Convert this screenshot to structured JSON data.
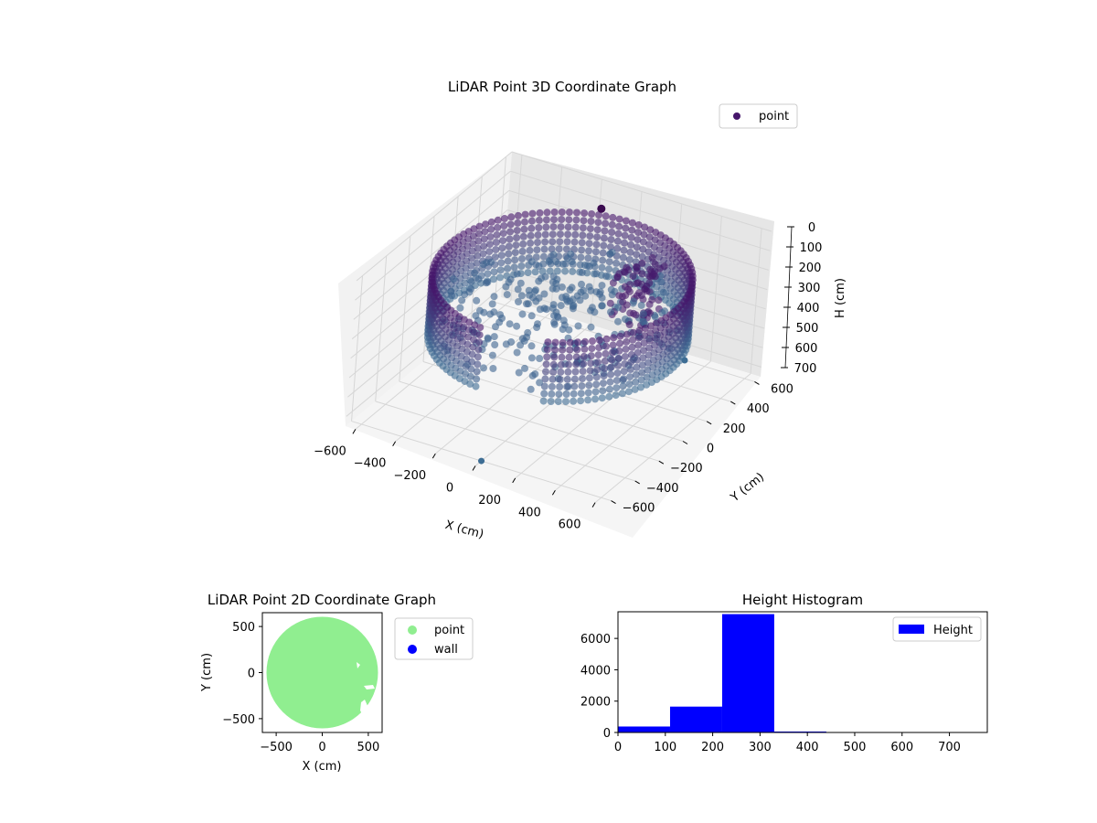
{
  "charts": {
    "main3d": {
      "title": "LiDAR Point 3D Coordinate Graph",
      "legend_label": "point",
      "xlabel": "X (cm)",
      "ylabel": "Y (cm)",
      "zlabel": "H (cm)",
      "x_ticks": [
        "−600",
        "−400",
        "−200",
        "0",
        "200",
        "400",
        "600"
      ],
      "y_ticks": [
        "−600",
        "−400",
        "−200",
        "0",
        "200",
        "400",
        "600"
      ],
      "z_ticks": [
        "0",
        "100",
        "200",
        "300",
        "400",
        "500",
        "600",
        "700"
      ]
    },
    "scatter2d": {
      "title": "LiDAR Point 2D Coordinate Graph",
      "legend_point": "point",
      "legend_wall": "wall",
      "xlabel": "X (cm)",
      "ylabel": "Y (cm)",
      "x_ticks": [
        "−500",
        "0",
        "500"
      ],
      "y_ticks": [
        "500",
        "0",
        "−500"
      ]
    },
    "hist": {
      "title": "Height Histogram",
      "legend_label": "Height",
      "x_ticks": [
        "0",
        "100",
        "200",
        "300",
        "400",
        "500",
        "600",
        "700"
      ],
      "y_ticks": [
        "0",
        "2000",
        "4000",
        "6000"
      ]
    }
  },
  "colors": {
    "point_3d_dark": "#46166b",
    "point_3d_light": "#3d6d94",
    "point_2d": "#90ee90",
    "wall": "#0000ff",
    "histogram": "#0000ff"
  },
  "chart_data": [
    {
      "type": "scatter",
      "projection": "3d",
      "title": "LiDAR Point 3D Coordinate Graph",
      "xlabel": "X (cm)",
      "ylabel": "Y (cm)",
      "zlabel": "H (cm)",
      "xlim": [
        -600,
        600
      ],
      "ylim": [
        -600,
        600
      ],
      "zlim": [
        750,
        0
      ],
      "series": [
        {
          "name": "point"
        }
      ],
      "shape": "cylindrical shell, radius ~550 cm, heights ~100-400 cm, with scattered interior points",
      "outliers": [
        {
          "x": 300,
          "y": 600,
          "h": 750
        },
        {
          "x": 0,
          "y": -600,
          "h": 750
        }
      ],
      "legend": "top-right",
      "grid": true
    },
    {
      "type": "scatter",
      "title": "LiDAR Point 2D Coordinate Graph",
      "xlabel": "X (cm)",
      "ylabel": "Y (cm)",
      "xlim": [
        -650,
        650
      ],
      "ylim": [
        -650,
        650
      ],
      "series": [
        {
          "name": "point"
        },
        {
          "name": "wall"
        }
      ],
      "shape": "filled disc of radius ~550 cm centered at (0,0)",
      "legend": "outside right"
    },
    {
      "type": "bar",
      "title": "Height Histogram",
      "series": [
        {
          "name": "Height"
        }
      ],
      "bin_edges": [
        0,
        110,
        220,
        330,
        440,
        550,
        660,
        770
      ],
      "values": [
        380,
        1650,
        7550,
        60,
        10,
        5,
        5
      ],
      "xlim": [
        0,
        780
      ],
      "ylim": [
        0,
        7700
      ],
      "legend": "top-right"
    }
  ]
}
